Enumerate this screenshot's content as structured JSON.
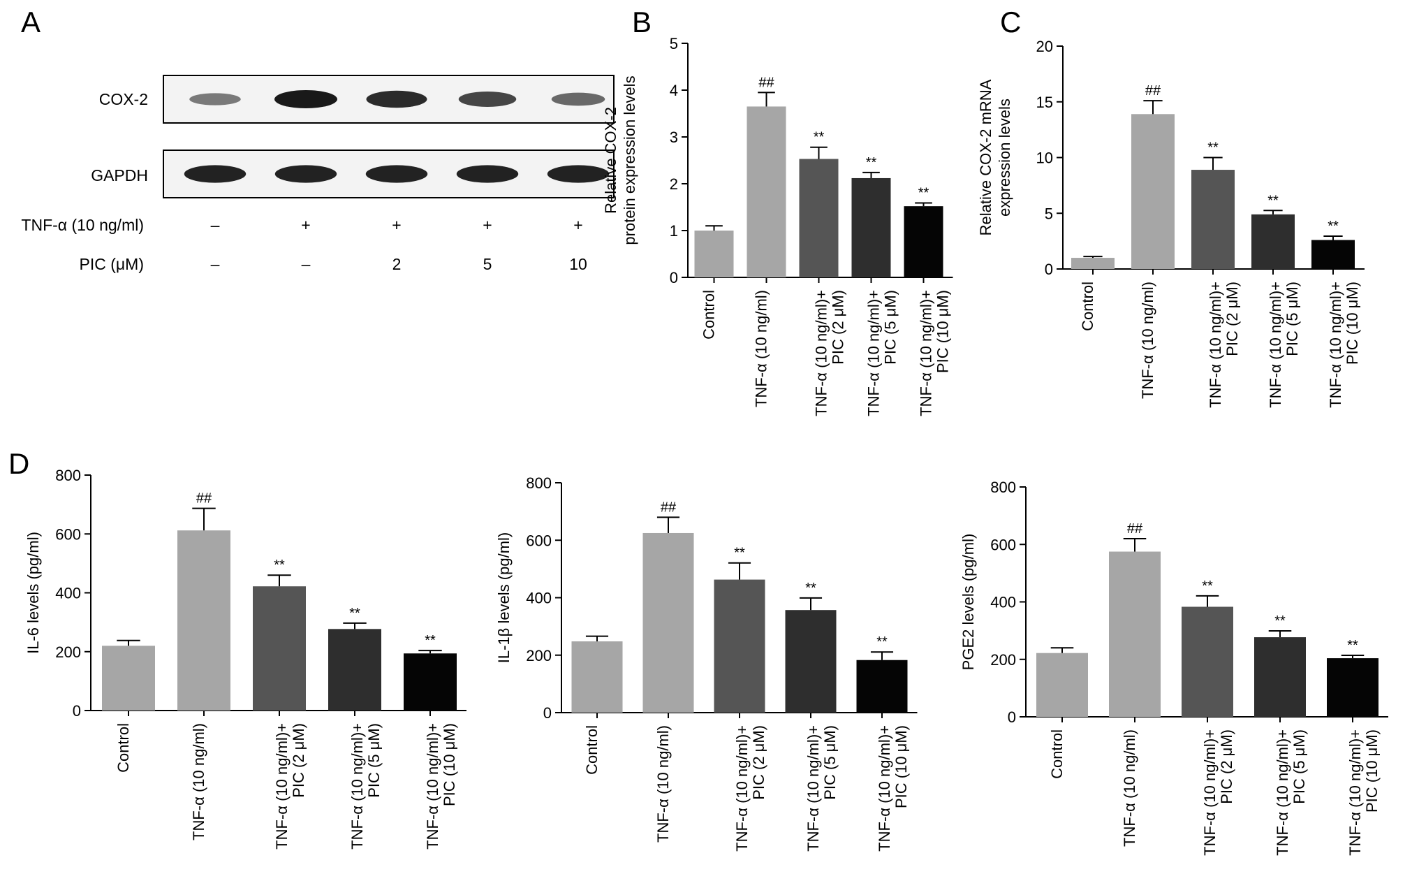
{
  "panel_letters": {
    "a": "A",
    "b": "B",
    "c": "C",
    "d": "D"
  },
  "blot": {
    "rows": [
      {
        "label": "COX-2",
        "band_intensity": [
          0.45,
          1.0,
          0.9,
          0.75,
          0.55
        ]
      },
      {
        "label": "GAPDH",
        "band_intensity": [
          0.95,
          0.95,
          0.95,
          0.95,
          0.95
        ]
      }
    ],
    "conditions": [
      {
        "label": "TNF-α (10 ng/ml)",
        "values": [
          "–",
          "+",
          "+",
          "+",
          "+"
        ]
      },
      {
        "label": "PIC (μM)",
        "values": [
          "–",
          "–",
          "2",
          "5",
          "10"
        ]
      }
    ]
  },
  "colors": {
    "bars": [
      "#a6a6a6",
      "#a6a6a6",
      "#555555",
      "#2e2e2e",
      "#050505"
    ],
    "axis": "#000000"
  },
  "chart_data": [
    {
      "id": "B",
      "type": "bar",
      "ylabel_lines": [
        "Relative COX-2",
        "protein expression levels"
      ],
      "ylim": [
        0,
        5
      ],
      "yticks": [
        0,
        1,
        2,
        3,
        4,
        5
      ],
      "categories": [
        [
          "Control"
        ],
        [
          "TNF-α (10 ng/ml)"
        ],
        [
          "TNF-α (10 ng/ml)+",
          "PIC (2 μM)"
        ],
        [
          "TNF-α (10 ng/ml)+",
          "PIC (5 μM)"
        ],
        [
          "TNF-α (10 ng/ml)+",
          "PIC (10 μM)"
        ]
      ],
      "values": [
        1.0,
        3.65,
        2.53,
        2.12,
        1.52
      ],
      "errors": [
        0.1,
        0.3,
        0.25,
        0.12,
        0.07
      ],
      "annotations": [
        "",
        "##",
        "**",
        "**",
        "**"
      ]
    },
    {
      "id": "C",
      "type": "bar",
      "ylabel_lines": [
        "Relative COX-2 mRNA",
        "expression levels"
      ],
      "ylim": [
        0,
        20
      ],
      "yticks": [
        0,
        5,
        10,
        15,
        20
      ],
      "categories": [
        [
          "Control"
        ],
        [
          "TNF-α (10 ng/ml)"
        ],
        [
          "TNF-α (10 ng/ml)+",
          "PIC (2 μM)"
        ],
        [
          "TNF-α (10 ng/ml)+",
          "PIC (5 μM)"
        ],
        [
          "TNF-α (10 ng/ml)+",
          "PIC (10 μM)"
        ]
      ],
      "values": [
        1.0,
        13.9,
        8.9,
        4.9,
        2.6
      ],
      "errors": [
        0.12,
        1.2,
        1.1,
        0.35,
        0.35
      ],
      "annotations": [
        "",
        "##",
        "**",
        "**",
        "**"
      ]
    },
    {
      "id": "D1",
      "type": "bar",
      "ylabel_lines": [
        "IL-6 levels (pg/ml)"
      ],
      "ylim": [
        0,
        800
      ],
      "yticks": [
        0,
        200,
        400,
        600,
        800
      ],
      "categories": [
        [
          "Control"
        ],
        [
          "TNF-α (10 ng/ml)"
        ],
        [
          "TNF-α (10 ng/ml)+",
          "PIC (2 μM)"
        ],
        [
          "TNF-α (10 ng/ml)+",
          "PIC (5 μM)"
        ],
        [
          "TNF-α (10 ng/ml)+",
          "PIC (10 μM)"
        ]
      ],
      "values": [
        220,
        612,
        422,
        277,
        194
      ],
      "errors": [
        18,
        75,
        38,
        20,
        10
      ],
      "annotations": [
        "",
        "##",
        "**",
        "**",
        "**"
      ]
    },
    {
      "id": "D2",
      "type": "bar",
      "ylabel_lines": [
        "IL-1β levels (pg/ml)"
      ],
      "ylim": [
        0,
        800
      ],
      "yticks": [
        0,
        200,
        400,
        600,
        800
      ],
      "categories": [
        [
          "Control"
        ],
        [
          "TNF-α (10 ng/ml)"
        ],
        [
          "TNF-α (10 ng/ml)+",
          "PIC (2 μM)"
        ],
        [
          "TNF-α (10 ng/ml)+",
          "PIC (5 μM)"
        ],
        [
          "TNF-α (10 ng/ml)+",
          "PIC (10 μM)"
        ]
      ],
      "values": [
        248,
        625,
        463,
        357,
        183
      ],
      "errors": [
        18,
        55,
        58,
        42,
        28
      ],
      "annotations": [
        "",
        "##",
        "**",
        "**",
        "**"
      ]
    },
    {
      "id": "D3",
      "type": "bar",
      "ylabel_lines": [
        "PGE2 levels (pg/ml)"
      ],
      "ylim": [
        0,
        800
      ],
      "yticks": [
        0,
        200,
        400,
        600,
        800
      ],
      "categories": [
        [
          "Control"
        ],
        [
          "TNF-α (10 ng/ml)"
        ],
        [
          "TNF-α (10 ng/ml)+",
          "PIC (2 μM)"
        ],
        [
          "TNF-α (10 ng/ml)+",
          "PIC (5 μM)"
        ],
        [
          "TNF-α (10 ng/ml)+",
          "PIC (10 μM)"
        ]
      ],
      "values": [
        222,
        575,
        383,
        277,
        204
      ],
      "errors": [
        18,
        45,
        38,
        22,
        10
      ],
      "annotations": [
        "",
        "##",
        "**",
        "**",
        "**"
      ]
    }
  ]
}
